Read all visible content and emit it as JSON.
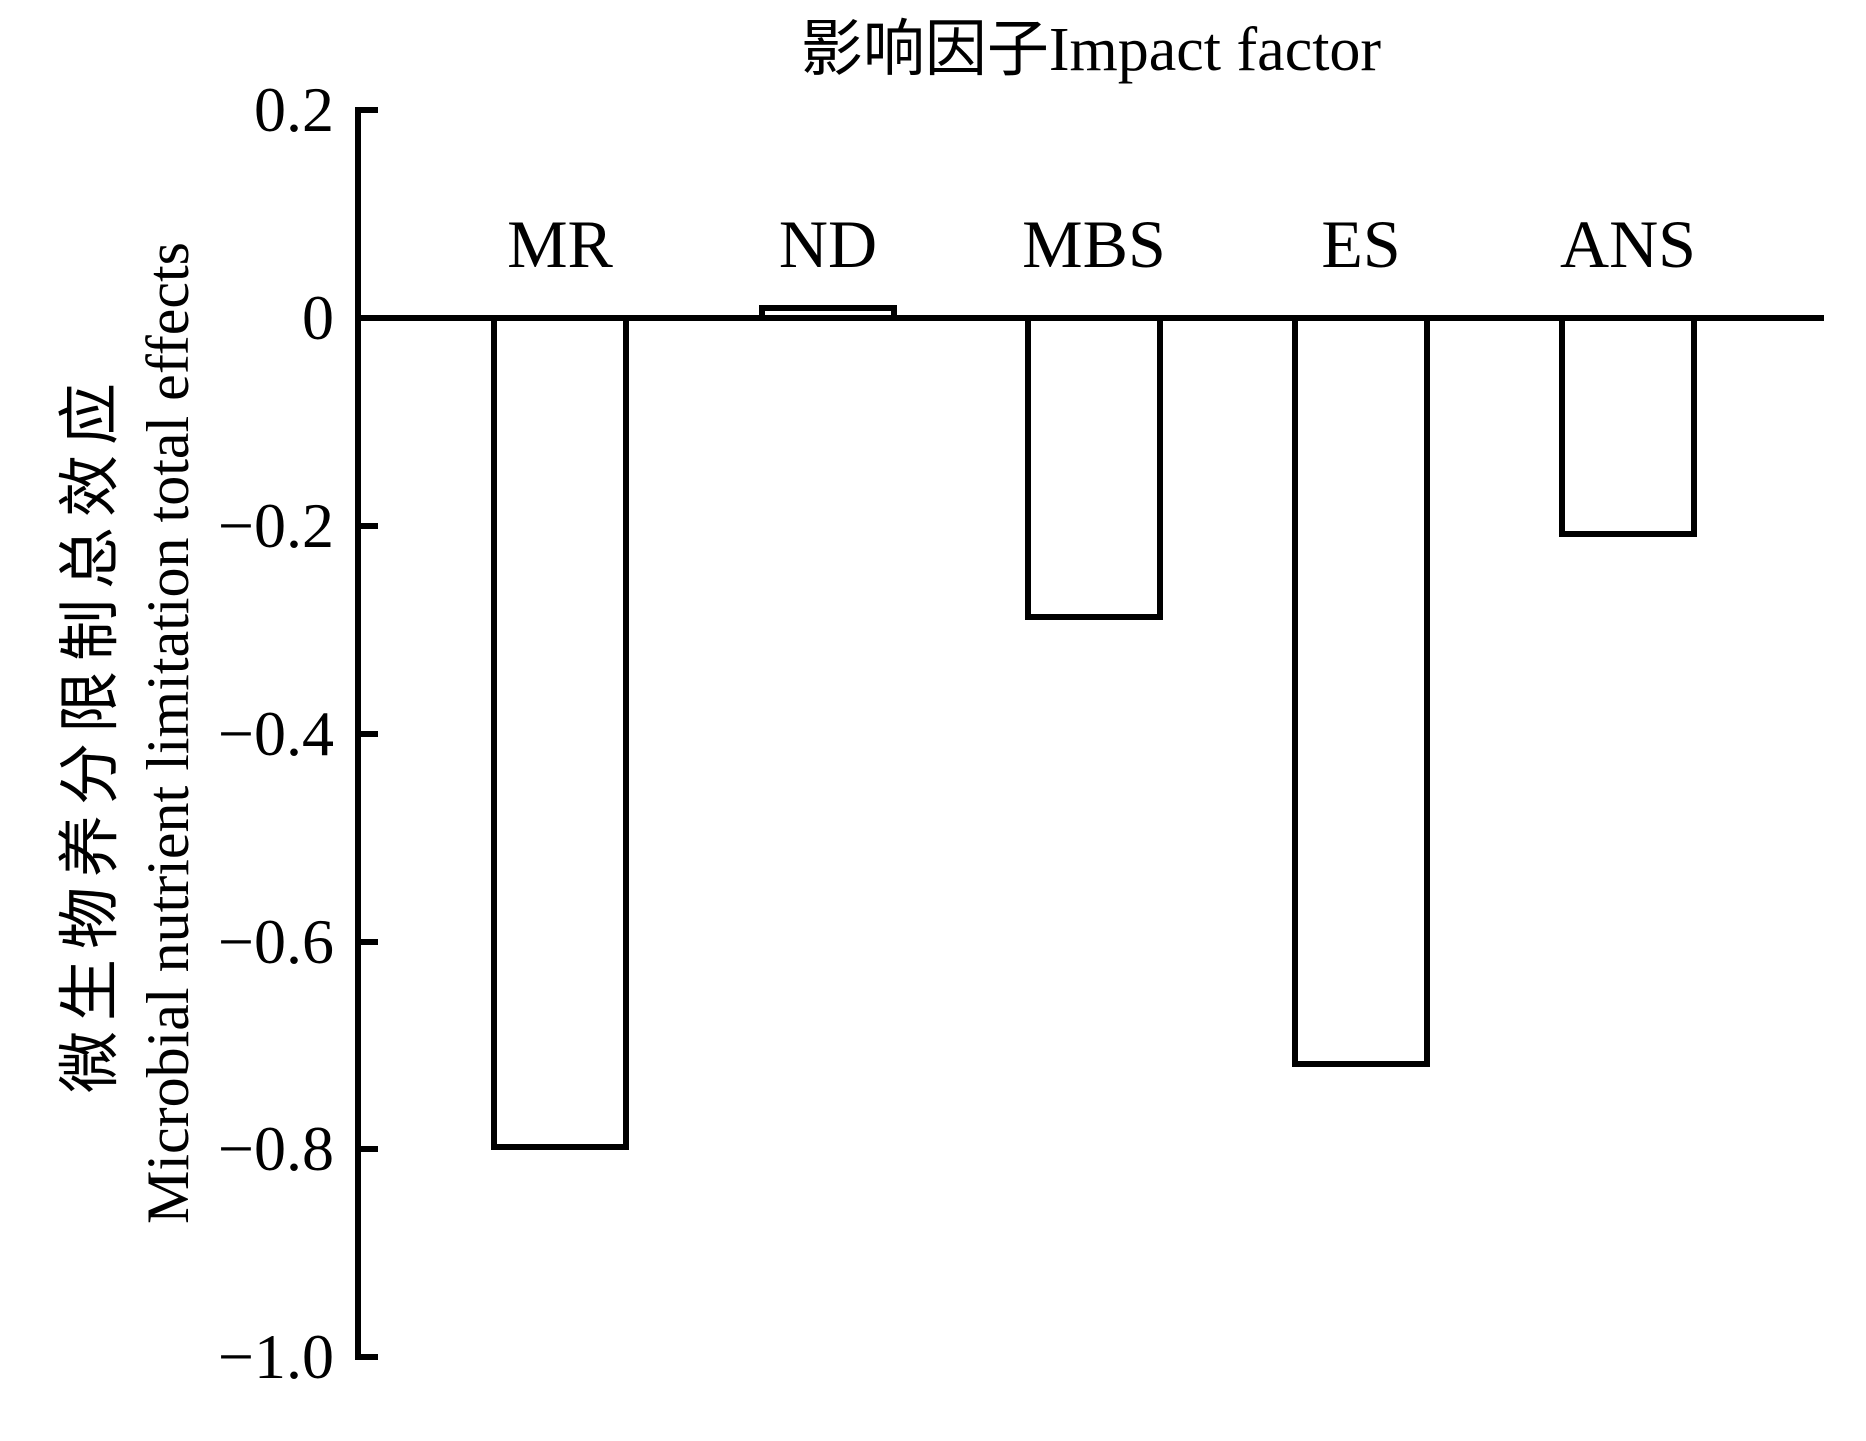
{
  "figure": {
    "title": "影响因子Impact factor",
    "ylabel_line1": "微生物养分限制总效应",
    "ylabel_line2": "Microbial nutrient limitation total effects",
    "background": "#ffffff",
    "ink": "#000000"
  },
  "chart_data": {
    "type": "bar",
    "title": "影响因子Impact factor",
    "xlabel": "影响因子Impact factor",
    "ylabel": "微生物养分限制总效应 Microbial nutrient limitation total effects",
    "categories": [
      "MR",
      "ND",
      "MBS",
      "ES",
      "ANS"
    ],
    "values": [
      -0.8,
      0.01,
      -0.29,
      -0.72,
      -0.21
    ],
    "ylim": [
      -1.0,
      0.2
    ],
    "ytick_step": 0.2,
    "yticks": [
      0.2,
      0,
      -0.2,
      -0.4,
      -0.6,
      -0.8,
      -1.0
    ],
    "ytick_labels": [
      "0.2",
      "0",
      "−0.2",
      "−0.4",
      "−0.6",
      "−0.8",
      "−1.0"
    ],
    "grid": false,
    "legend": false,
    "bar_fill": "#ffffff",
    "bar_border": "#000000",
    "axis_color": "#000000"
  }
}
